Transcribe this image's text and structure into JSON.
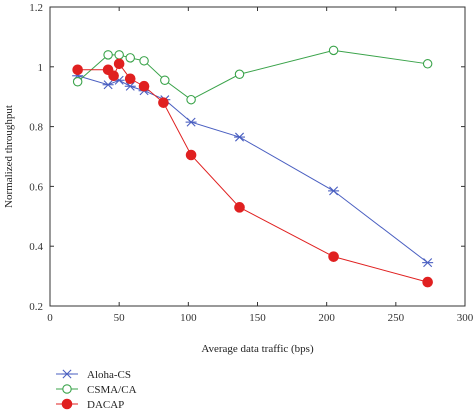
{
  "chart_data": {
    "type": "line",
    "title": "",
    "xlabel": "Average data traffic (bps)",
    "ylabel": "Normalized throughput",
    "xlim": [
      0,
      300
    ],
    "ylim": [
      0.2,
      1.2
    ],
    "xticks": [
      0,
      50,
      100,
      150,
      200,
      250,
      300
    ],
    "yticks": [
      0.2,
      0.4,
      0.6,
      0.8,
      1,
      1.2
    ],
    "xtick_labels": [
      "0",
      "50",
      "100",
      "150",
      "200",
      "250",
      "300"
    ],
    "ytick_labels": [
      "0.2",
      "0.4",
      "0.6",
      "0.8",
      "1",
      "1.2"
    ],
    "grid": false,
    "legend_position": "below",
    "series": [
      {
        "name": "Aloha-CS",
        "color": "#4a5fc1",
        "marker": "star",
        "x": [
          20,
          42,
          50,
          58,
          68,
          83,
          102,
          137,
          205,
          273
        ],
        "y": [
          0.97,
          0.94,
          0.955,
          0.935,
          0.92,
          0.89,
          0.815,
          0.765,
          0.585,
          0.345
        ]
      },
      {
        "name": "CSMA/CA",
        "color": "#3aa34a",
        "marker": "open-circle",
        "x": [
          20,
          42,
          50,
          58,
          68,
          83,
          102,
          137,
          205,
          273
        ],
        "y": [
          0.95,
          1.04,
          1.04,
          1.03,
          1.02,
          0.955,
          0.89,
          0.975,
          1.055,
          1.01
        ]
      },
      {
        "name": "DACAP",
        "color": "#e02020",
        "marker": "filled-circle",
        "x": [
          20,
          42,
          46,
          50,
          58,
          68,
          82,
          102,
          137,
          205,
          273
        ],
        "y": [
          0.99,
          0.99,
          0.97,
          1.01,
          0.96,
          0.935,
          0.88,
          0.705,
          0.53,
          0.365,
          0.28
        ]
      }
    ]
  }
}
